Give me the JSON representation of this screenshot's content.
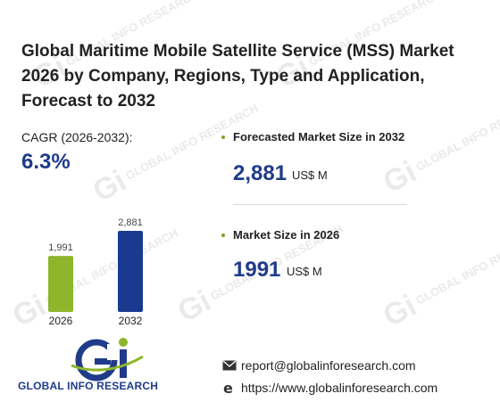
{
  "title": "Global Maritime Mobile Satellite Service (MSS) Market 2026 by Company, Regions, Type and Application, Forecast to 2032",
  "cagr": {
    "label": "CAGR (2026-2032):",
    "value": "6.3%"
  },
  "forecast": {
    "label": "Forecasted Market Size in 2032",
    "value": "2,881",
    "unit": "US$ M"
  },
  "market_size": {
    "label": "Market Size in 2026",
    "value": "1991",
    "unit": "US$ M"
  },
  "chart_data": {
    "type": "bar",
    "categories": [
      "2026",
      "2032"
    ],
    "values": [
      1991,
      2881
    ],
    "value_labels": [
      "1,991",
      "2,881"
    ],
    "colors": [
      "#8db62a",
      "#1a3a8f"
    ],
    "ylim": [
      0,
      2881
    ],
    "grid": false
  },
  "logo": {
    "text": "GLOBAL INFO RESEARCH",
    "mark": "Gi"
  },
  "watermark": {
    "text": "GLOBAL INFO RESEARCH",
    "mark": "Gi"
  },
  "contact": {
    "email": "report@globalinforesearch.com",
    "website": "https://www.globalinforesearch.com",
    "email_icon": "envelope-icon",
    "web_icon": "globe-icon"
  },
  "colors": {
    "accent": "#1f3b8a",
    "green": "#8db62a",
    "navy": "#1a3a8f"
  }
}
